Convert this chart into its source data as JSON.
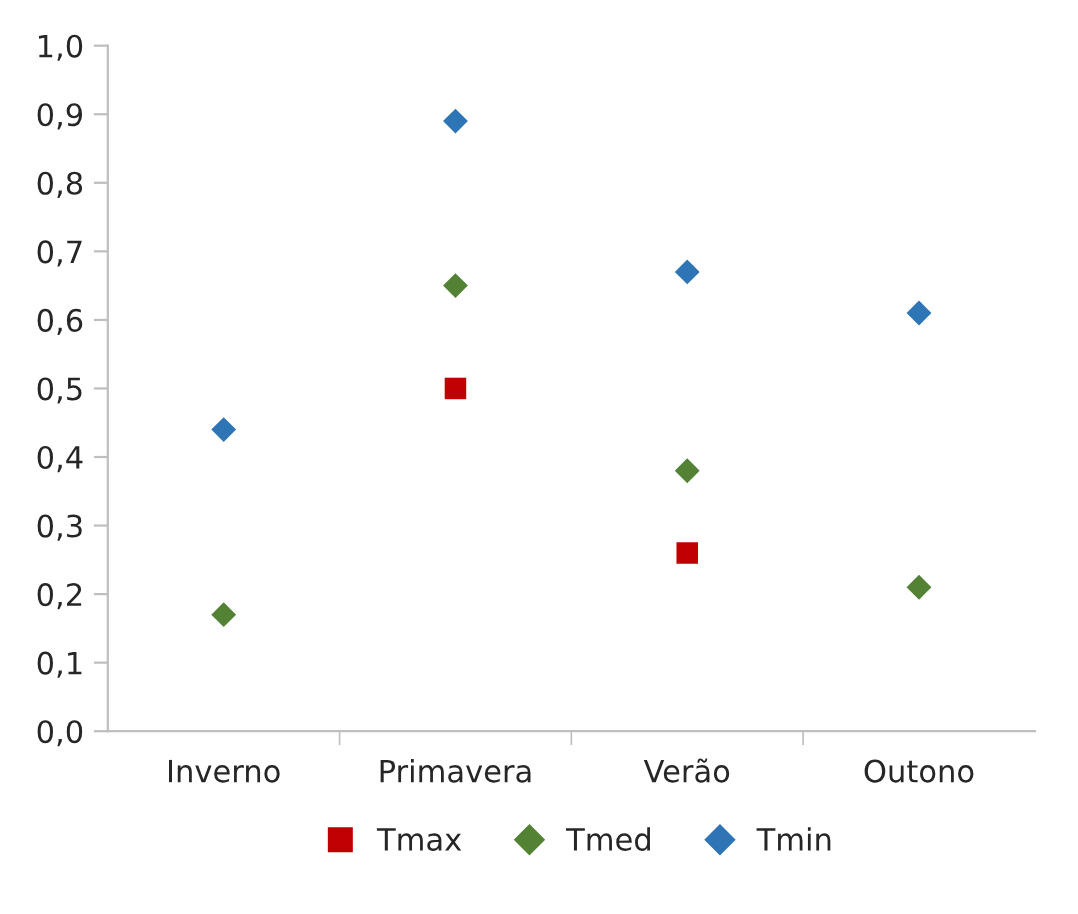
{
  "chart_data": {
    "type": "scatter",
    "categories": [
      "Inverno",
      "Primavera",
      "Verão",
      "Outono"
    ],
    "series": [
      {
        "name": "Tmax",
        "color": "#c00000",
        "marker": "square",
        "values": [
          null,
          0.5,
          0.26,
          null
        ]
      },
      {
        "name": "Tmed",
        "color": "#548235",
        "marker": "diamond",
        "values": [
          0.17,
          0.65,
          0.38,
          0.21
        ]
      },
      {
        "name": "Tmin",
        "color": "#2e75b6",
        "marker": "diamond",
        "values": [
          0.44,
          0.89,
          0.67,
          0.61
        ]
      }
    ],
    "ylim": [
      0,
      1
    ],
    "yticks": [
      {
        "value": 0,
        "label": "0,0"
      },
      {
        "value": 0.1,
        "label": "0,1"
      },
      {
        "value": 0.2,
        "label": "0,2"
      },
      {
        "value": 0.3,
        "label": "0,3"
      },
      {
        "value": 0.4,
        "label": "0,4"
      },
      {
        "value": 0.5,
        "label": "0,5"
      },
      {
        "value": 0.6,
        "label": "0,6"
      },
      {
        "value": 0.7,
        "label": "0,7"
      },
      {
        "value": 0.8,
        "label": "0,8"
      },
      {
        "value": 0.9,
        "label": "0,9"
      },
      {
        "value": 1,
        "label": "1,0"
      }
    ],
    "grid": false,
    "legend": "bottom"
  }
}
